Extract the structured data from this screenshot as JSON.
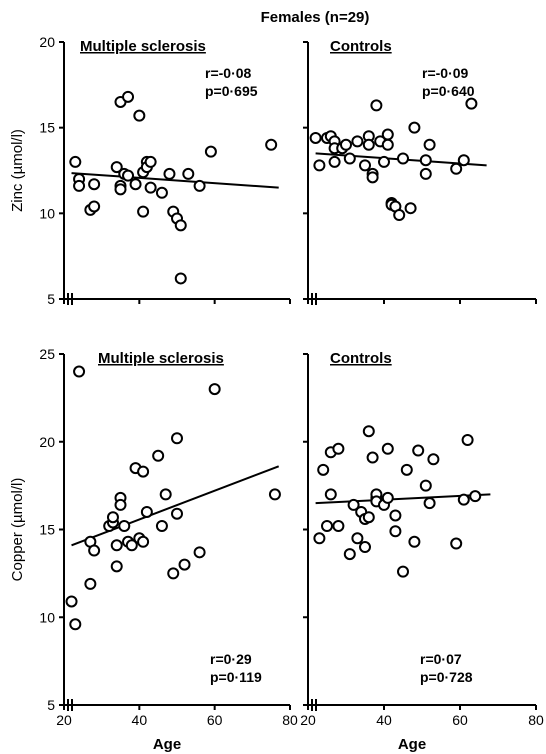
{
  "figure_title": "Females (n=29)",
  "chart_data": [
    {
      "type": "scatter",
      "id": "zinc_ms",
      "title": "Multiple sclerosis",
      "ylabel": "Zinc (µmol/l)",
      "xlabel": "",
      "xlim": [
        20,
        80
      ],
      "ylim": [
        5,
        20
      ],
      "yticks": [
        "20",
        "15",
        "10",
        "5"
      ],
      "xticks": [],
      "stats": {
        "r": "r=-0·08",
        "p": "p=0·695"
      },
      "trend": [
        [
          22,
          12.35
        ],
        [
          77,
          11.5
        ]
      ],
      "points": [
        [
          23,
          13.0
        ],
        [
          24,
          12.0
        ],
        [
          24,
          11.6
        ],
        [
          27,
          10.2
        ],
        [
          28,
          10.4
        ],
        [
          28,
          11.7
        ],
        [
          34,
          12.7
        ],
        [
          35,
          11.6
        ],
        [
          35,
          11.4
        ],
        [
          35,
          16.5
        ],
        [
          36,
          12.3
        ],
        [
          37,
          12.2
        ],
        [
          37,
          16.8
        ],
        [
          39,
          11.7
        ],
        [
          40,
          15.7
        ],
        [
          41,
          12.4
        ],
        [
          41,
          10.1
        ],
        [
          42,
          13.0
        ],
        [
          42,
          12.7
        ],
        [
          43,
          13.0
        ],
        [
          43,
          11.5
        ],
        [
          46,
          11.2
        ],
        [
          48,
          12.3
        ],
        [
          49,
          10.1
        ],
        [
          50,
          9.7
        ],
        [
          51,
          9.3
        ],
        [
          51,
          6.2
        ],
        [
          53,
          12.3
        ],
        [
          56,
          11.6
        ],
        [
          59,
          13.6
        ],
        [
          75,
          14.0
        ]
      ]
    },
    {
      "type": "scatter",
      "id": "zinc_controls",
      "title": "Controls",
      "ylabel": "",
      "xlabel": "",
      "xlim": [
        20,
        80
      ],
      "ylim": [
        5,
        20
      ],
      "yticks": [],
      "xticks": [],
      "stats": {
        "r": "r=-0·09",
        "p": "p=0·640"
      },
      "trend": [
        [
          22,
          13.5
        ],
        [
          67,
          12.8
        ]
      ],
      "points": [
        [
          22,
          14.4
        ],
        [
          23,
          12.8
        ],
        [
          25,
          14.4
        ],
        [
          26,
          14.5
        ],
        [
          27,
          14.2
        ],
        [
          27,
          13.8
        ],
        [
          27,
          13.0
        ],
        [
          29,
          13.8
        ],
        [
          30,
          14.0
        ],
        [
          31,
          13.2
        ],
        [
          33,
          14.2
        ],
        [
          35,
          12.8
        ],
        [
          36,
          14.5
        ],
        [
          36,
          14.0
        ],
        [
          37,
          12.3
        ],
        [
          37,
          12.1
        ],
        [
          38,
          16.3
        ],
        [
          39,
          14.2
        ],
        [
          40,
          13.0
        ],
        [
          41,
          14.6
        ],
        [
          41,
          14.0
        ],
        [
          42,
          10.6
        ],
        [
          42,
          10.5
        ],
        [
          43,
          10.4
        ],
        [
          44,
          9.9
        ],
        [
          45,
          13.2
        ],
        [
          47,
          10.3
        ],
        [
          48,
          15.0
        ],
        [
          51,
          12.3
        ],
        [
          51,
          13.1
        ],
        [
          52,
          14.0
        ],
        [
          59,
          12.6
        ],
        [
          61,
          13.1
        ],
        [
          63,
          16.4
        ]
      ]
    },
    {
      "type": "scatter",
      "id": "copper_ms",
      "title": "Multiple sclerosis",
      "ylabel": "Copper (µmol/l)",
      "xlabel": "Age",
      "xlim": [
        20,
        80
      ],
      "ylim": [
        5,
        25
      ],
      "yticks": [
        "25",
        "20",
        "15",
        "10",
        "5"
      ],
      "xticks": [
        "20",
        "40",
        "60",
        "80"
      ],
      "stats": {
        "r": "r=0·29",
        "p": "p=0·119"
      },
      "trend": [
        [
          22,
          14.1
        ],
        [
          77,
          18.6
        ]
      ],
      "points": [
        [
          22,
          10.9
        ],
        [
          23,
          9.6
        ],
        [
          24,
          24.0
        ],
        [
          27,
          14.3
        ],
        [
          27,
          11.9
        ],
        [
          28,
          13.8
        ],
        [
          32,
          15.2
        ],
        [
          33,
          15.4
        ],
        [
          33,
          15.7
        ],
        [
          34,
          12.9
        ],
        [
          34,
          14.1
        ],
        [
          35,
          16.8
        ],
        [
          35,
          16.4
        ],
        [
          36,
          15.2
        ],
        [
          37,
          14.3
        ],
        [
          38,
          14.1
        ],
        [
          39,
          18.5
        ],
        [
          40,
          14.5
        ],
        [
          41,
          14.3
        ],
        [
          41,
          18.3
        ],
        [
          42,
          16.0
        ],
        [
          45,
          19.2
        ],
        [
          46,
          15.2
        ],
        [
          47,
          17.0
        ],
        [
          49,
          12.5
        ],
        [
          50,
          15.9
        ],
        [
          50,
          20.2
        ],
        [
          52,
          13.0
        ],
        [
          56,
          13.7
        ],
        [
          60,
          23.0
        ],
        [
          76,
          17.0
        ]
      ]
    },
    {
      "type": "scatter",
      "id": "copper_controls",
      "title": "Controls",
      "ylabel": "",
      "xlabel": "Age",
      "xlim": [
        20,
        80
      ],
      "ylim": [
        5,
        25
      ],
      "yticks": [],
      "xticks": [
        "20",
        "40",
        "60",
        "80"
      ],
      "stats": {
        "r": "r=0·07",
        "p": "p=0·728"
      },
      "trend": [
        [
          22,
          16.5
        ],
        [
          68,
          17.0
        ]
      ],
      "points": [
        [
          23,
          14.5
        ],
        [
          24,
          18.4
        ],
        [
          25,
          15.2
        ],
        [
          26,
          17.0
        ],
        [
          26,
          19.4
        ],
        [
          28,
          19.6
        ],
        [
          28,
          15.2
        ],
        [
          31,
          13.6
        ],
        [
          32,
          16.4
        ],
        [
          33,
          14.5
        ],
        [
          34,
          16.0
        ],
        [
          35,
          15.6
        ],
        [
          35,
          14.0
        ],
        [
          36,
          20.6
        ],
        [
          36,
          15.7
        ],
        [
          37,
          19.1
        ],
        [
          38,
          16.8
        ],
        [
          38,
          17.0
        ],
        [
          38,
          16.6
        ],
        [
          40,
          16.4
        ],
        [
          41,
          19.6
        ],
        [
          41,
          16.8
        ],
        [
          43,
          14.9
        ],
        [
          43,
          15.8
        ],
        [
          45,
          12.6
        ],
        [
          46,
          18.4
        ],
        [
          48,
          14.3
        ],
        [
          49,
          19.5
        ],
        [
          51,
          17.5
        ],
        [
          52,
          16.5
        ],
        [
          53,
          19.0
        ],
        [
          59,
          14.2
        ],
        [
          61,
          16.7
        ],
        [
          62,
          20.1
        ],
        [
          64,
          16.9
        ]
      ]
    }
  ]
}
